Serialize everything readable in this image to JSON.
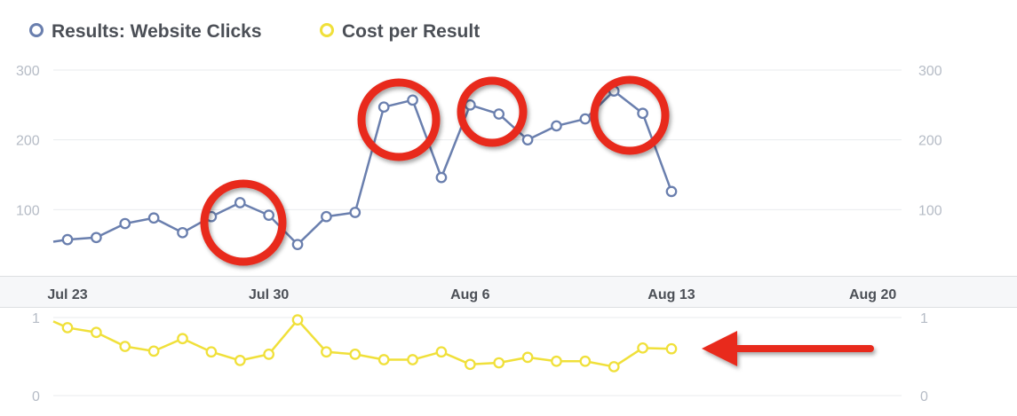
{
  "legend": {
    "clicks_label": "Results: Website Clicks",
    "cost_label": "Cost per Result"
  },
  "colors": {
    "clicks": "#6a7fae",
    "cost": "#f0e03a",
    "annotation": "#e8291c",
    "grid": "#e9ebee",
    "tick": "#b6bcc6"
  },
  "chart_data": [
    {
      "type": "line",
      "name": "clicks-chart",
      "y_ticks": [
        100,
        200,
        300
      ],
      "ylim": [
        0,
        300
      ],
      "y_tick_labels_both_sides": true,
      "grid": true,
      "series": [
        {
          "name": "Results: Website Clicks",
          "x": [
            "Jul 23",
            "Jul 24",
            "Jul 25",
            "Jul 26",
            "Jul 27",
            "Jul 28",
            "Jul 29",
            "Jul 30",
            "Jul 31",
            "Aug 1",
            "Aug 2",
            "Aug 3",
            "Aug 4",
            "Aug 5",
            "Aug 6",
            "Aug 7",
            "Aug 8",
            "Aug 9",
            "Aug 10",
            "Aug 11",
            "Aug 12",
            "Aug 13"
          ],
          "values": [
            57,
            60,
            80,
            88,
            67,
            90,
            110,
            92,
            50,
            90,
            96,
            247,
            257,
            146,
            250,
            237,
            200,
            220,
            230,
            270,
            238,
            126
          ]
        }
      ],
      "leading_value": 54,
      "x_tick_labels": [
        "Jul 23",
        "Jul 30",
        "Aug 6",
        "Aug 13",
        "Aug 20"
      ]
    },
    {
      "type": "line",
      "name": "cost-chart",
      "y_ticks": [
        0,
        1
      ],
      "ylim": [
        0,
        1
      ],
      "y_tick_labels_both_sides": true,
      "grid": true,
      "series": [
        {
          "name": "Cost per Result",
          "x": [
            "Jul 23",
            "Jul 24",
            "Jul 25",
            "Jul 26",
            "Jul 27",
            "Jul 28",
            "Jul 29",
            "Jul 30",
            "Jul 31",
            "Aug 1",
            "Aug 2",
            "Aug 3",
            "Aug 4",
            "Aug 5",
            "Aug 6",
            "Aug 7",
            "Aug 8",
            "Aug 9",
            "Aug 10",
            "Aug 11",
            "Aug 12",
            "Aug 13"
          ],
          "values": [
            0.87,
            0.81,
            0.63,
            0.57,
            0.73,
            0.56,
            0.45,
            0.53,
            0.97,
            0.56,
            0.53,
            0.46,
            0.46,
            0.56,
            0.4,
            0.42,
            0.49,
            0.44,
            0.44,
            0.37,
            0.61,
            0.6
          ]
        }
      ],
      "leading_value": 0.95
    }
  ],
  "annotations": {
    "circles": [
      {
        "name": "circle-jul-29",
        "x": "Jul 29",
        "y": 100
      },
      {
        "name": "circle-aug-3",
        "x": "Aug 3",
        "y": 240
      },
      {
        "name": "circle-aug-6",
        "x": "Aug 6",
        "y": 245
      },
      {
        "name": "circle-aug-11",
        "x": "Aug 11",
        "y": 255
      }
    ],
    "arrow": {
      "points_to": "cost-chart",
      "direction": "left"
    }
  }
}
